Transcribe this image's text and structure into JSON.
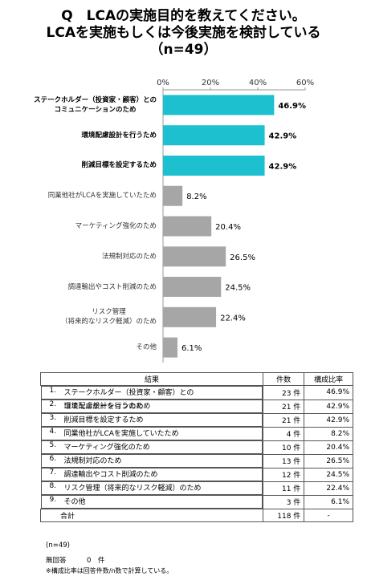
{
  "chart_data": {
    "type": "bar",
    "orientation": "horizontal",
    "title": [
      "Q　LCAの実施目的を教えてください。",
      "LCAを実施もしくは今後実施を検討している",
      "（n=49）"
    ],
    "categories": [
      "ステークホルダー（投資家・顧客）との\nコミュニケーションのため",
      "環境配慮設計を行うため",
      "削減目標を設定するため",
      "同業他社がLCAを実施していたため",
      "マーケティング強化のため",
      "法規制対応のため",
      "調達輸出やコスト削減のため",
      "リスク管理\n（将来的なリスク軽減）のため",
      "その他"
    ],
    "values": [
      46.9,
      42.9,
      42.9,
      8.2,
      20.4,
      26.5,
      24.5,
      22.4,
      6.1
    ],
    "value_labels": [
      "46.9%",
      "42.9%",
      "42.9%",
      "8.2%",
      "20.4%",
      "26.5%",
      "24.5%",
      "22.4%",
      "6.1%"
    ],
    "colors": [
      "#1cc0cf",
      "#1cc0cf",
      "#1cc0cf",
      "#a6a6a6",
      "#a6a6a6",
      "#a6a6a6",
      "#a6a6a6",
      "#a6a6a6",
      "#a6a6a6"
    ],
    "xlim": [
      0,
      60
    ],
    "xticks": [
      {
        "value": 0,
        "label": "0%"
      },
      {
        "value": 20,
        "label": "20%"
      },
      {
        "value": 40,
        "label": "40%"
      },
      {
        "value": 60,
        "label": "60%"
      }
    ]
  },
  "table": {
    "header": [
      "結果",
      "件数",
      "構成比率"
    ],
    "rows": [
      [
        "1.",
        "ステークホルダー（投資家・顧客）との\nコミュニケーションのため",
        "23 件",
        "46.9%"
      ],
      [
        "2.",
        "環境配慮設計を行うため",
        "21 件",
        "42.9%"
      ],
      [
        "3.",
        "削減目標を設定するため",
        "21 件",
        "42.9%"
      ],
      [
        "4.",
        "同業他社がLCAを実施していたため",
        "4 件",
        "8.2%"
      ],
      [
        "5.",
        "マーケティング強化のため",
        "10 件",
        "20.4%"
      ],
      [
        "6.",
        "法規制対応のため",
        "13 件",
        "26.5%"
      ],
      [
        "7.",
        "調達輸出やコスト削減のため",
        "12 件",
        "24.5%"
      ],
      [
        "8.",
        "リスク管理（将来的なリスク軽減）のため",
        "11 件",
        "22.4%"
      ],
      [
        "9.",
        "その他",
        "3 件",
        "6.1%"
      ]
    ],
    "total": [
      "合計",
      "118 件",
      "-"
    ]
  },
  "footer": {
    "n": "(n=49)",
    "no_answer": "無回答　　　0　件",
    "note": "※構成比率は回答件数/n数で計算している。"
  }
}
